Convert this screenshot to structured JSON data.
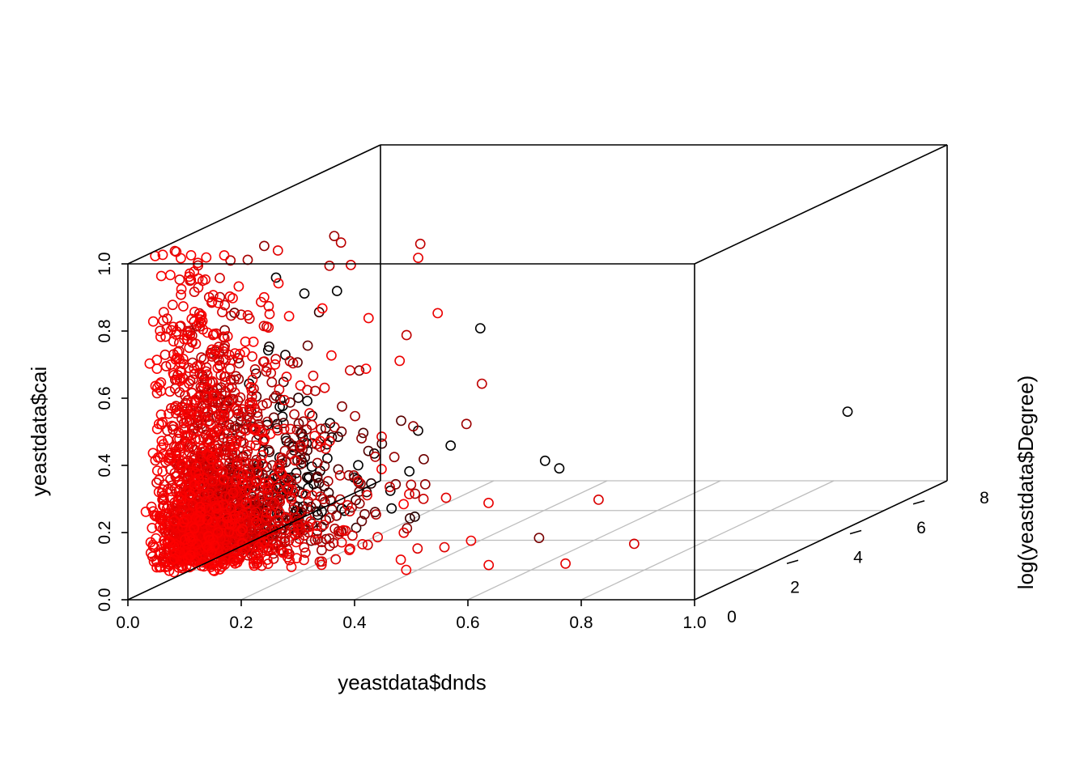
{
  "chart_data": {
    "type": "scatter",
    "projection": "3d-perspective-box",
    "xlabel": "yeastdata$dnds",
    "ylabel": "yeastdata$cai",
    "zlabel": "log(yeastdata$Degree)",
    "xlim": [
      0,
      1
    ],
    "ylim": [
      0,
      1
    ],
    "zlim": [
      0,
      8
    ],
    "x_ticks": [
      "0.0",
      "0.2",
      "0.4",
      "0.6",
      "0.8",
      "1.0"
    ],
    "y_ticks": [
      "0.0",
      "0.2",
      "0.4",
      "0.6",
      "0.8",
      "1.0"
    ],
    "z_ticks": [
      "0",
      "2",
      "4",
      "6",
      "8"
    ],
    "grid": "on (base plane)",
    "marker": "open circle",
    "color_gradient": {
      "low_z": "#ff0000",
      "high_z": "#000000"
    },
    "point_count_approx": 2600,
    "highlighted_points": [
      {
        "x": 0.49,
        "y": 1.0,
        "z": 0.4
      },
      {
        "x": 0.53,
        "y": 0.84,
        "z": 0.3
      },
      {
        "x": 0.3,
        "y": 0.95,
        "z": 1.0
      },
      {
        "x": 0.36,
        "y": 0.97,
        "z": 0.6
      },
      {
        "x": 0.42,
        "y": 0.45,
        "z": 1.5
      },
      {
        "x": 0.53,
        "y": 0.25,
        "z": 3.7
      },
      {
        "x": 0.88,
        "y": 0.25,
        "z": 7.0
      },
      {
        "x": 0.75,
        "y": 0.09,
        "z": 0.4
      },
      {
        "x": 0.86,
        "y": 0.14,
        "z": 0.6
      },
      {
        "x": 0.62,
        "y": 0.09,
        "z": 0.3
      },
      {
        "x": 0.48,
        "y": 0.08,
        "z": 0.2
      },
      {
        "x": 0.12,
        "y": 0.94,
        "z": 0.3
      },
      {
        "x": 0.07,
        "y": 0.66,
        "z": 0.2
      },
      {
        "x": 0.05,
        "y": 0.52,
        "z": 0.2
      }
    ]
  }
}
